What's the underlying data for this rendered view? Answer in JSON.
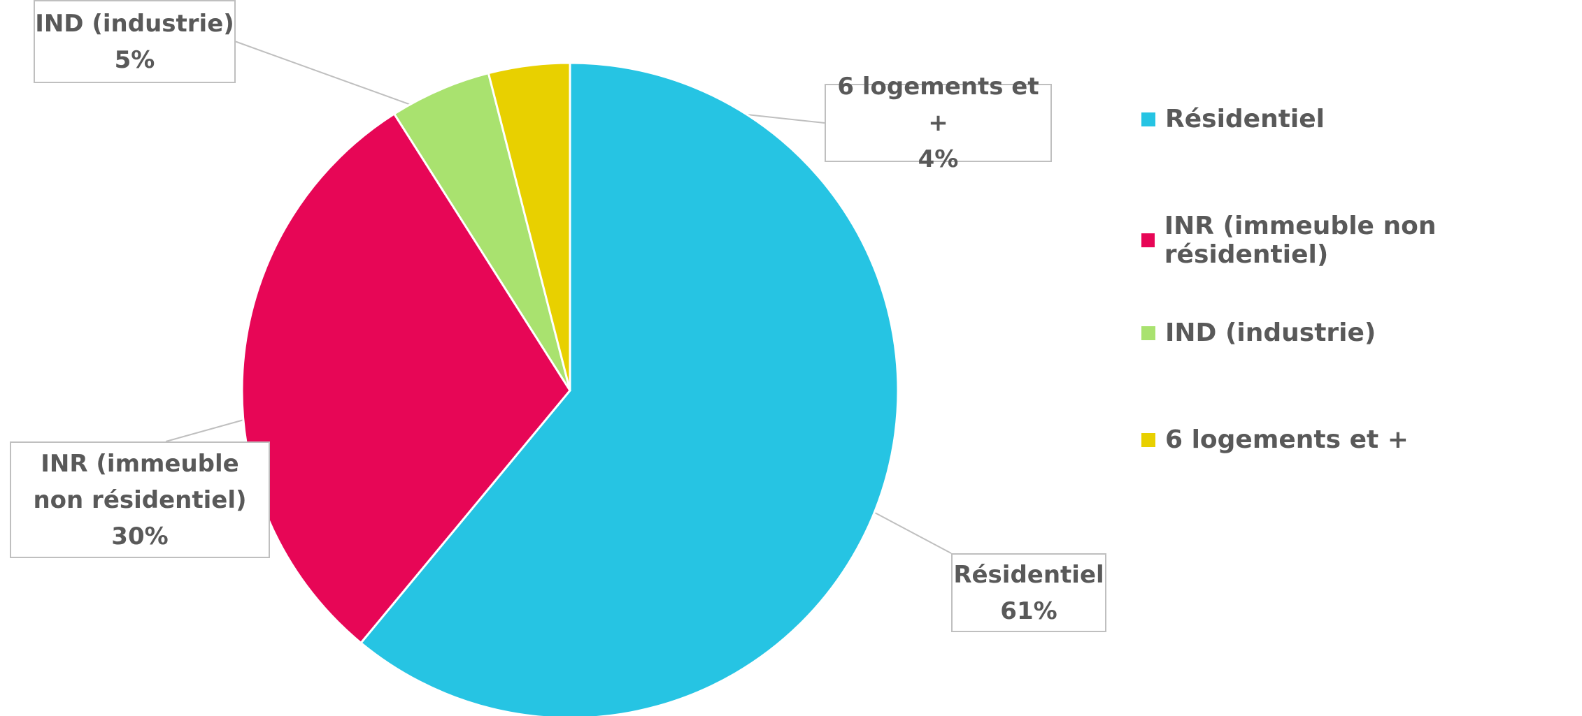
{
  "chart_data": {
    "type": "pie",
    "categories": [
      "Résidentiel",
      "INR (immeuble non résidentiel)",
      "IND (industrie)",
      "6 logements et +"
    ],
    "values": [
      61,
      30,
      5,
      4
    ],
    "value_labels": [
      "61%",
      "30%",
      "5%",
      "4%"
    ],
    "colors": [
      "#26c4e3",
      "#e70656",
      "#a9e26f",
      "#e8d000"
    ],
    "legend": "right"
  }
}
